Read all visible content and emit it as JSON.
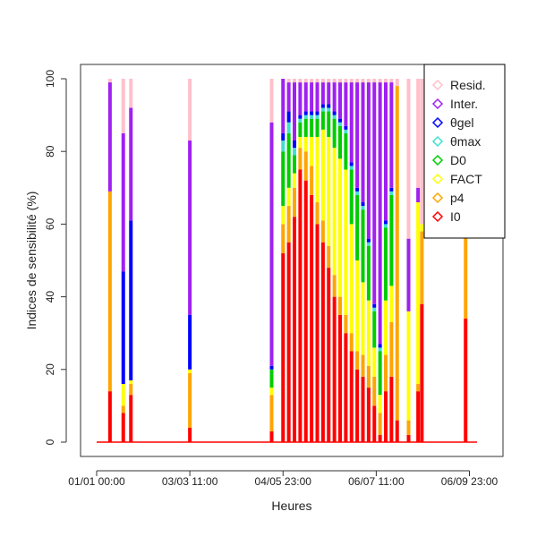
{
  "chart_data": {
    "type": "area",
    "title": "",
    "xlabel": "Heures",
    "ylabel": "Indices de sensibilité (%)",
    "xlim": [
      0,
      100
    ],
    "ylim": [
      0,
      100
    ],
    "x_ticks": [
      {
        "x": 0,
        "label": "01/01 00:00"
      },
      {
        "x": 24.5,
        "label": "03/03 11:00"
      },
      {
        "x": 49,
        "label": "04/05 23:00"
      },
      {
        "x": 73.5,
        "label": "06/07 11:00"
      },
      {
        "x": 98,
        "label": "06/09 23:00"
      }
    ],
    "y_ticks": [
      0,
      20,
      40,
      60,
      80,
      100
    ],
    "grid": false,
    "legend_position": "top-right",
    "series": [
      {
        "name": "Resid.",
        "color": "#ffc0cb"
      },
      {
        "name": "Inter.",
        "color": "#a020f0"
      },
      {
        "name": "θgel",
        "color": "#0000ff"
      },
      {
        "name": "θmax",
        "color": "#40e0d0"
      },
      {
        "name": "D0",
        "color": "#00cc00"
      },
      {
        "name": "FACT",
        "color": "#ffff00"
      },
      {
        "name": "p4",
        "color": "#ffa500"
      },
      {
        "name": "I0",
        "color": "#ff0000"
      }
    ],
    "stacked_segments": [
      {
        "x": 3.5,
        "I0": 14,
        "p4": 55,
        "FACT": 0,
        "D0": 0,
        "θmax": 0,
        "θgel": 0,
        "Inter.": 30,
        "Resid.": 1
      },
      {
        "x": 7,
        "I0": 8,
        "p4": 2,
        "FACT": 6,
        "D0": 0,
        "θmax": 0,
        "θgel": 31,
        "Inter.": 38,
        "Resid.": 15
      },
      {
        "x": 9,
        "I0": 13,
        "p4": 3,
        "FACT": 1,
        "D0": 0,
        "θmax": 0,
        "θgel": 44,
        "Inter.": 31,
        "Resid.": 8
      },
      {
        "x": 24.5,
        "I0": 4,
        "p4": 15,
        "FACT": 1,
        "D0": 0,
        "θmax": 0,
        "θgel": 15,
        "Inter.": 48,
        "Resid.": 17
      },
      {
        "x": 46,
        "I0": 3,
        "p4": 10,
        "FACT": 2,
        "D0": 5,
        "θmax": 0,
        "θgel": 1,
        "Inter.": 67,
        "Resid.": 12
      },
      {
        "x": 49,
        "I0": 52,
        "p4": 8,
        "FACT": 5,
        "D0": 15,
        "θmax": 3,
        "θgel": 2,
        "Inter.": 15,
        "Resid.": 0
      },
      {
        "x": 50.5,
        "I0": 55,
        "p4": 10,
        "FACT": 5,
        "D0": 15,
        "θmax": 3,
        "θgel": 3,
        "Inter.": 8,
        "Resid.": 1
      },
      {
        "x": 52,
        "I0": 62,
        "p4": 8,
        "FACT": 4,
        "D0": 5,
        "θmax": 2,
        "θgel": 2,
        "Inter.": 16,
        "Resid.": 1
      },
      {
        "x": 53.5,
        "I0": 75,
        "p4": 6,
        "FACT": 3,
        "D0": 4,
        "θmax": 1,
        "θgel": 1,
        "Inter.": 9,
        "Resid.": 1
      },
      {
        "x": 55,
        "I0": 72,
        "p4": 8,
        "FACT": 4,
        "D0": 5,
        "θmax": 1,
        "θgel": 1,
        "Inter.": 8,
        "Resid.": 1
      },
      {
        "x": 56.5,
        "I0": 68,
        "p4": 8,
        "FACT": 8,
        "D0": 5,
        "θmax": 1,
        "θgel": 1,
        "Inter.": 8,
        "Resid.": 1
      },
      {
        "x": 58,
        "I0": 60,
        "p4": 6,
        "FACT": 18,
        "D0": 5,
        "θmax": 1,
        "θgel": 1,
        "Inter.": 8,
        "Resid.": 1
      },
      {
        "x": 59.5,
        "I0": 55,
        "p4": 6,
        "FACT": 25,
        "D0": 5,
        "θmax": 1,
        "θgel": 1,
        "Inter.": 6,
        "Resid.": 1
      },
      {
        "x": 61,
        "I0": 48,
        "p4": 6,
        "FACT": 30,
        "D0": 7,
        "θmax": 1,
        "θgel": 1,
        "Inter.": 6,
        "Resid.": 1
      },
      {
        "x": 62.5,
        "I0": 40,
        "p4": 6,
        "FACT": 35,
        "D0": 8,
        "θmax": 1,
        "θgel": 1,
        "Inter.": 8,
        "Resid.": 1
      },
      {
        "x": 64,
        "I0": 35,
        "p4": 5,
        "FACT": 38,
        "D0": 9,
        "θmax": 1,
        "θgel": 1,
        "Inter.": 10,
        "Resid.": 1
      },
      {
        "x": 65.5,
        "I0": 30,
        "p4": 5,
        "FACT": 40,
        "D0": 10,
        "θmax": 1,
        "θgel": 1,
        "Inter.": 12,
        "Resid.": 1
      },
      {
        "x": 67,
        "I0": 25,
        "p4": 5,
        "FACT": 30,
        "D0": 15,
        "θmax": 1,
        "θgel": 1,
        "Inter.": 22,
        "Resid.": 1
      },
      {
        "x": 68.5,
        "I0": 20,
        "p4": 5,
        "FACT": 25,
        "D0": 18,
        "θmax": 1,
        "θgel": 1,
        "Inter.": 29,
        "Resid.": 1
      },
      {
        "x": 70,
        "I0": 18,
        "p4": 6,
        "FACT": 20,
        "D0": 20,
        "θmax": 1,
        "θgel": 1,
        "Inter.": 33,
        "Resid.": 1
      },
      {
        "x": 71.5,
        "I0": 15,
        "p4": 6,
        "FACT": 18,
        "D0": 15,
        "θmax": 1,
        "θgel": 1,
        "Inter.": 43,
        "Resid.": 1
      },
      {
        "x": 73,
        "I0": 10,
        "p4": 8,
        "FACT": 8,
        "D0": 10,
        "θmax": 1,
        "θgel": 1,
        "Inter.": 61,
        "Resid.": 1
      },
      {
        "x": 74.5,
        "I0": 2,
        "p4": 6,
        "FACT": 5,
        "D0": 12,
        "θmax": 1,
        "θgel": 1,
        "Inter.": 72,
        "Resid.": 1
      },
      {
        "x": 76,
        "I0": 14,
        "p4": 10,
        "FACT": 15,
        "D0": 20,
        "θmax": 1,
        "θgel": 1,
        "Inter.": 38,
        "Resid.": 1
      },
      {
        "x": 77.5,
        "I0": 18,
        "p4": 15,
        "FACT": 10,
        "D0": 25,
        "θmax": 1,
        "θgel": 1,
        "Inter.": 29,
        "Resid.": 1
      },
      {
        "x": 79,
        "I0": 6,
        "p4": 92,
        "FACT": 0,
        "D0": 0,
        "θmax": 0,
        "θgel": 0,
        "Inter.": 0,
        "Resid.": 2
      },
      {
        "x": 82,
        "I0": 2,
        "p4": 4,
        "FACT": 30,
        "D0": 0,
        "θmax": 0,
        "θgel": 0,
        "Inter.": 20,
        "Resid.": 44
      },
      {
        "x": 84.5,
        "I0": 14,
        "p4": 2,
        "FACT": 50,
        "D0": 0,
        "θmax": 0,
        "θgel": 0,
        "Inter.": 4,
        "Resid.": 30
      },
      {
        "x": 85.5,
        "I0": 38,
        "p4": 20,
        "FACT": 2,
        "D0": 0,
        "θmax": 0,
        "θgel": 0,
        "Inter.": 0,
        "Resid.": 40
      },
      {
        "x": 97,
        "I0": 34,
        "p4": 30,
        "FACT": 0,
        "D0": 0,
        "θmax": 0,
        "θgel": 0,
        "Inter.": 0,
        "Resid.": 36
      }
    ]
  }
}
